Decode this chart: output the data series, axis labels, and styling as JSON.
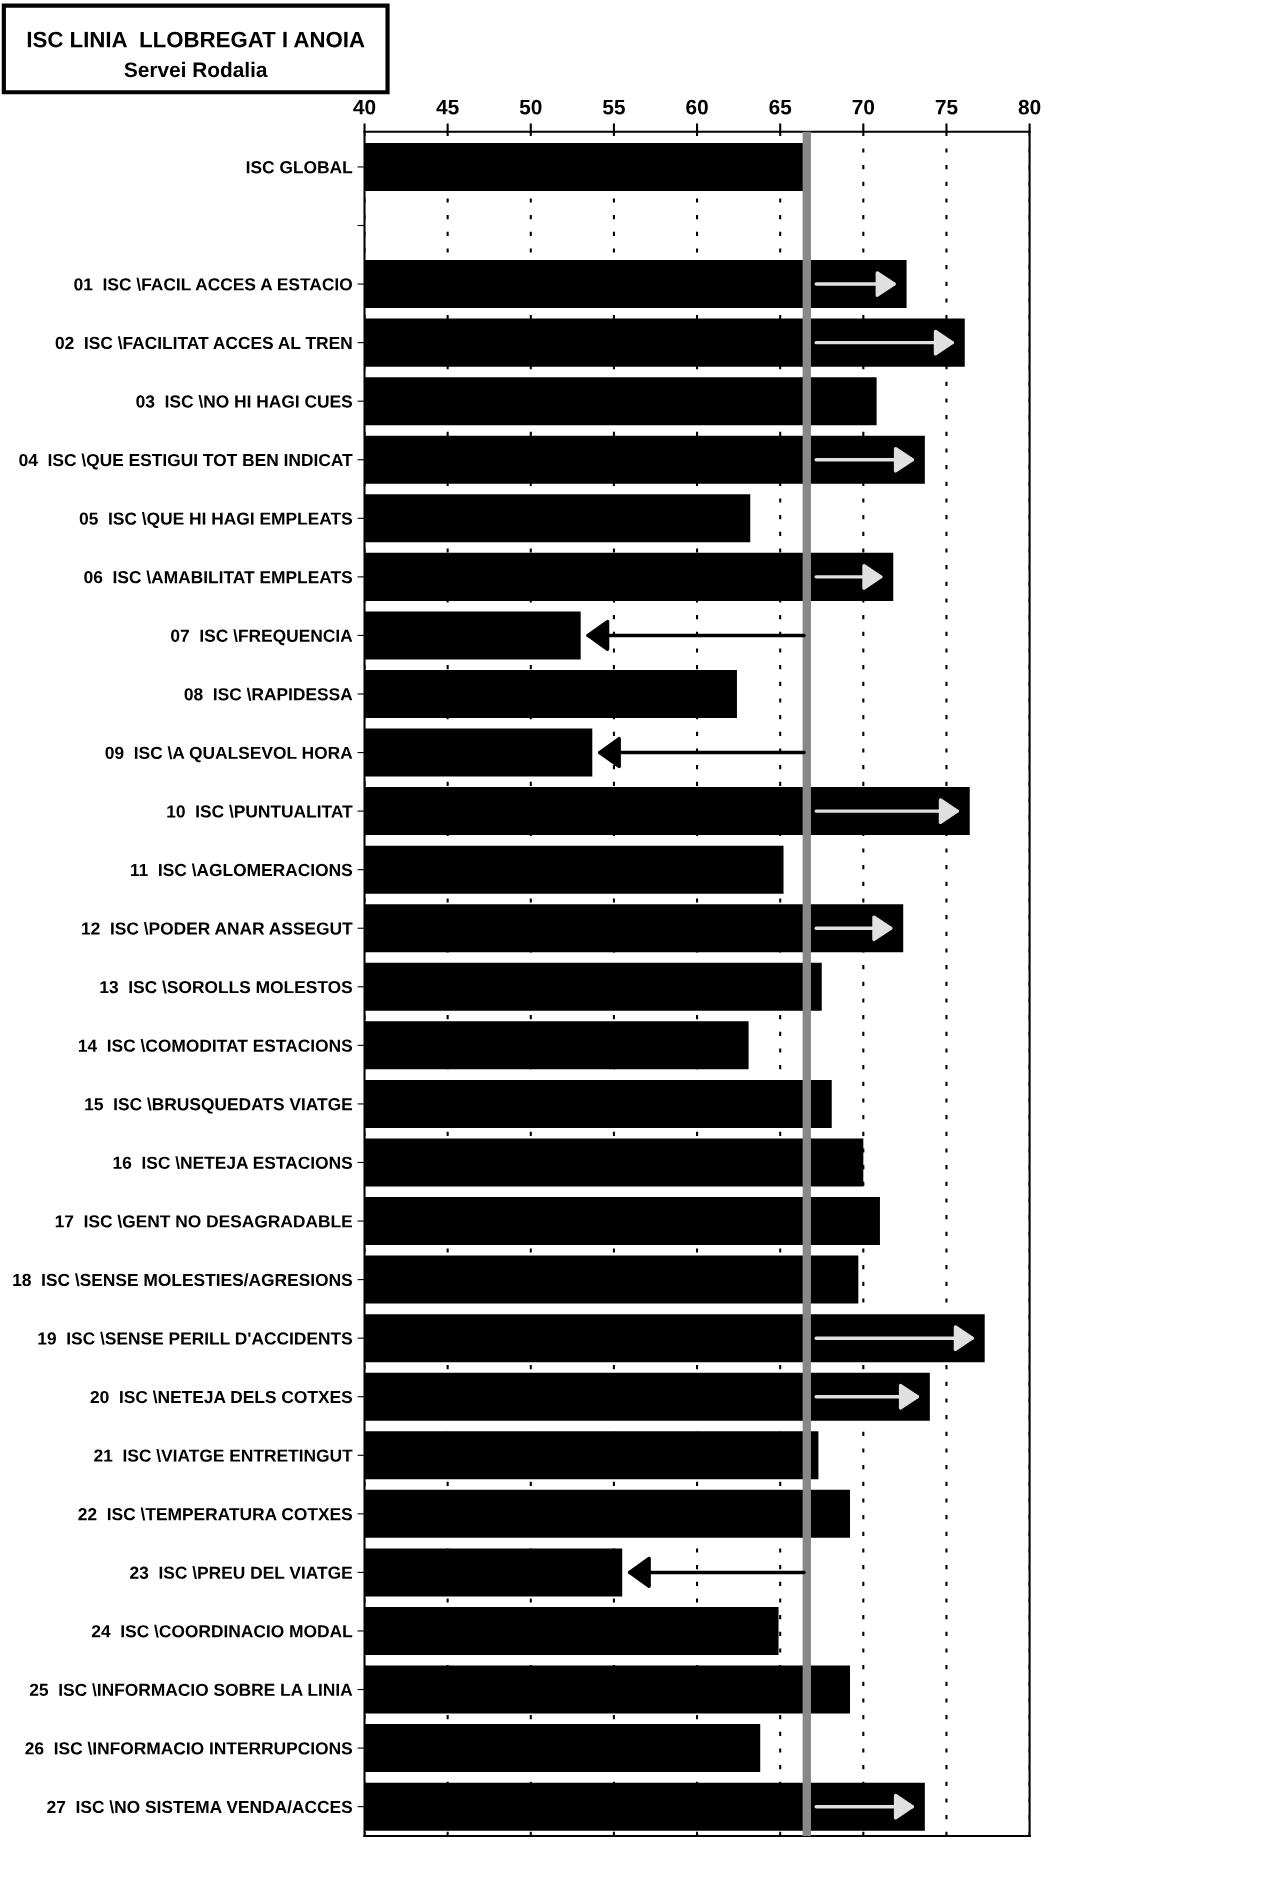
{
  "chart_data": {
    "type": "bar",
    "orientation": "horizontal",
    "title": "ISC LINIA  LLOBREGAT I ANOIA",
    "subtitle": "Servei Rodalia",
    "categories": [
      "ISC GLOBAL",
      null,
      "01  ISC \\FACIL ACCES A ESTACIO",
      "02  ISC \\FACILITAT ACCES AL TREN",
      "03  ISC \\NO HI HAGI CUES",
      "04  ISC \\QUE ESTIGUI TOT BEN INDICAT",
      "05  ISC \\QUE HI HAGI EMPLEATS",
      "06  ISC \\AMABILITAT EMPLEATS",
      "07  ISC \\FREQUENCIA",
      "08  ISC \\RAPIDESSA",
      "09  ISC \\A QUALSEVOL HORA",
      "10  ISC \\PUNTUALITAT",
      "11  ISC \\AGLOMERACIONS",
      "12  ISC \\PODER ANAR ASSEGUT",
      "13  ISC \\SOROLLS MOLESTOS",
      "14  ISC \\COMODITAT ESTACIONS",
      "15  ISC \\BRUSQUEDATS VIATGE",
      "16  ISC \\NETEJA ESTACIONS",
      "17  ISC \\GENT NO DESAGRADABLE",
      "18  ISC \\SENSE MOLESTIES/AGRESIONS",
      "19  ISC \\SENSE PERILL D'ACCIDENTS",
      "20  ISC \\NETEJA DELS COTXES",
      "21  ISC \\VIATGE ENTRETINGUT",
      "22  ISC \\TEMPERATURA COTXES",
      "23  ISC \\PREU DEL VIATGE",
      "24  ISC \\COORDINACIO MODAL",
      "25  ISC \\INFORMACIO SOBRE LA LINIA",
      "26  ISC \\INFORMACIO INTERRUPCIONS",
      "27  ISC \\NO SISTEMA VENDA/ACCES"
    ],
    "values": [
      66.4,
      null,
      72.6,
      76.1,
      70.8,
      73.7,
      63.2,
      71.8,
      53.0,
      62.4,
      53.7,
      76.4,
      65.2,
      72.4,
      67.5,
      63.1,
      68.1,
      70.0,
      71.0,
      69.7,
      77.3,
      74.0,
      67.3,
      69.2,
      55.5,
      64.9,
      69.2,
      63.8,
      73.7
    ],
    "color": "#000000",
    "xlim": [
      40,
      80
    ],
    "xticks": [
      40,
      45,
      50,
      55,
      60,
      65,
      70,
      75,
      80
    ],
    "grid": "x",
    "ref_lines": [
      {
        "axis": "x",
        "value": 66.6,
        "color": "#888888"
      }
    ]
  }
}
